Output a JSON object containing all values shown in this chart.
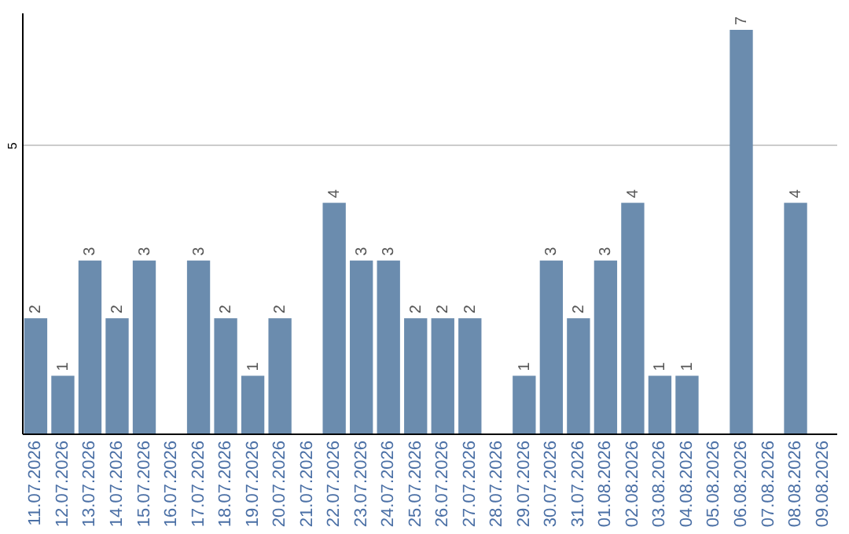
{
  "chart_data": {
    "type": "bar",
    "categories": [
      "11.07.2026",
      "12.07.2026",
      "13.07.2026",
      "14.07.2026",
      "15.07.2026",
      "16.07.2026",
      "17.07.2026",
      "18.07.2026",
      "19.07.2026",
      "20.07.2026",
      "21.07.2026",
      "22.07.2026",
      "23.07.2026",
      "24.07.2026",
      "25.07.2026",
      "26.07.2026",
      "27.07.2026",
      "28.07.2026",
      "29.07.2026",
      "30.07.2026",
      "31.07.2026",
      "01.08.2026",
      "02.08.2026",
      "03.08.2026",
      "04.08.2026",
      "05.08.2026",
      "06.08.2026",
      "07.08.2026",
      "08.08.2026",
      "09.08.2026"
    ],
    "values": [
      2,
      1,
      3,
      2,
      3,
      null,
      3,
      2,
      1,
      2,
      null,
      4,
      3,
      3,
      2,
      2,
      2,
      null,
      1,
      3,
      2,
      3,
      4,
      1,
      1,
      null,
      7,
      null,
      4,
      null
    ],
    "color": "#6b8cae",
    "ylim": [
      0,
      7.3
    ],
    "yticks": [
      5
    ],
    "grid": "y",
    "data_labels": true
  }
}
